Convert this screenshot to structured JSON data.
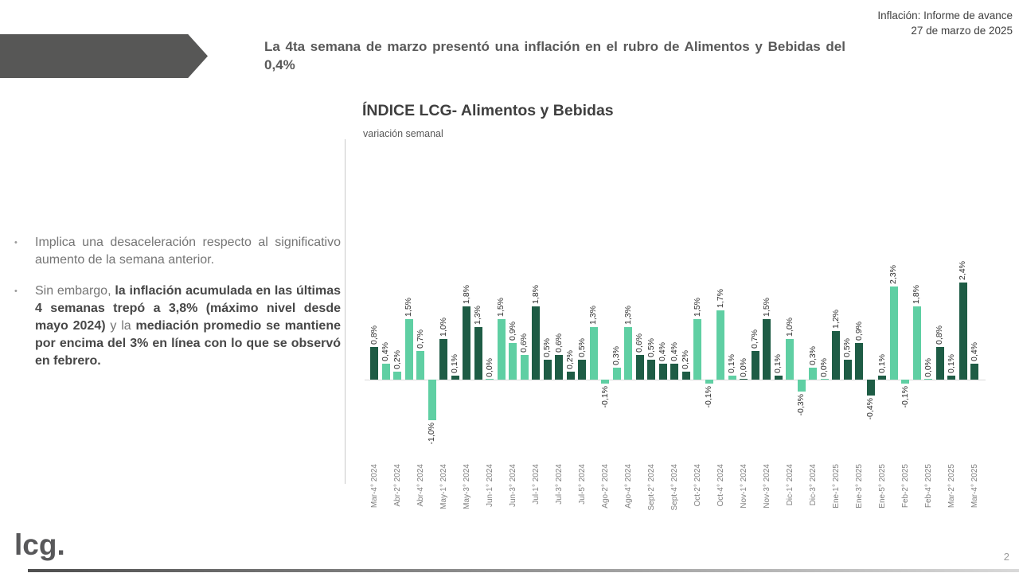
{
  "header": {
    "line1": "Inflación: Informe de avance",
    "line2": "27 de marzo de 2025"
  },
  "headline": {
    "text": "La 4ta semana de marzo presentó una inflación en el rubro de Alimentos y Bebidas del 0,4%"
  },
  "bullets": {
    "marker": "•",
    "b1": "Implica una desaceleración respecto al significativo aumento de la semana anterior.",
    "b2_parts": [
      {
        "text": "Sin embargo, ",
        "bold": false
      },
      {
        "text": "la inflación acumulada en las últimas 4 semanas trepó a 3,8% (máximo nivel desde mayo 2024)",
        "bold": true
      },
      {
        "text": " y la ",
        "bold": false
      },
      {
        "text": "mediación promedio se mantiene por encima del 3% en línea con lo que se observó en febrero.",
        "bold": true
      }
    ]
  },
  "chart_data": {
    "type": "bar",
    "title": "ÍNDICE LCG- Alimentos y Bebidas",
    "subtitle": "variación semanal",
    "ylabel": "variación semanal (%)",
    "ylim": [
      -1.2,
      2.6
    ],
    "grid": false,
    "legend": "none",
    "colors": {
      "dark": "#1E5C45",
      "light": "#5FCFA3"
    },
    "points": [
      {
        "v": 0.8,
        "label": "0,8%",
        "tick": "Mar-4° 2024",
        "shade": "dark"
      },
      {
        "v": 0.4,
        "label": "0,4%",
        "tick": "",
        "shade": "light"
      },
      {
        "v": 0.2,
        "label": "0,2%",
        "tick": "Abr-2° 2024",
        "shade": "light"
      },
      {
        "v": 1.5,
        "label": "1,5%",
        "tick": "",
        "shade": "light"
      },
      {
        "v": 0.7,
        "label": "0,7%",
        "tick": "Abr-4° 2024",
        "shade": "light"
      },
      {
        "v": -1.0,
        "label": "-1,0%",
        "tick": "",
        "shade": "light"
      },
      {
        "v": 1.0,
        "label": "1,0%",
        "tick": "May-1° 2024",
        "shade": "dark"
      },
      {
        "v": 0.1,
        "label": "0,1%",
        "tick": "",
        "shade": "dark"
      },
      {
        "v": 1.8,
        "label": "1,8%",
        "tick": "May-3° 2024",
        "shade": "dark"
      },
      {
        "v": 1.3,
        "label": "1,3%",
        "tick": "",
        "shade": "dark"
      },
      {
        "v": 0.0,
        "label": "0,0%",
        "tick": "Jun-1° 2024",
        "shade": "light"
      },
      {
        "v": 1.5,
        "label": "1,5%",
        "tick": "",
        "shade": "light"
      },
      {
        "v": 0.9,
        "label": "0,9%",
        "tick": "Jun-3° 2024",
        "shade": "light"
      },
      {
        "v": 0.6,
        "label": "0,6%",
        "tick": "",
        "shade": "light"
      },
      {
        "v": 1.8,
        "label": "1,8%",
        "tick": "Jul-1° 2024",
        "shade": "dark"
      },
      {
        "v": 0.5,
        "label": "0,5%",
        "tick": "",
        "shade": "dark"
      },
      {
        "v": 0.6,
        "label": "0,6%",
        "tick": "Jul-3° 2024",
        "shade": "dark"
      },
      {
        "v": 0.2,
        "label": "0,2%",
        "tick": "",
        "shade": "dark"
      },
      {
        "v": 0.5,
        "label": "0,5%",
        "tick": "Jul-5° 2024",
        "shade": "dark"
      },
      {
        "v": 1.3,
        "label": "1,3%",
        "tick": "",
        "shade": "light"
      },
      {
        "v": -0.1,
        "label": "-0,1%",
        "tick": "Ago-2° 2024",
        "shade": "light"
      },
      {
        "v": 0.3,
        "label": "0,3%",
        "tick": "",
        "shade": "light"
      },
      {
        "v": 1.3,
        "label": "1,3%",
        "tick": "Ago-4° 2024",
        "shade": "light"
      },
      {
        "v": 0.6,
        "label": "0,6%",
        "tick": "",
        "shade": "dark"
      },
      {
        "v": 0.5,
        "label": "0,5%",
        "tick": "Sept-2° 2024",
        "shade": "dark"
      },
      {
        "v": 0.4,
        "label": "0,4%",
        "tick": "",
        "shade": "dark"
      },
      {
        "v": 0.4,
        "label": "0,4%",
        "tick": "Sept-4° 2024",
        "shade": "dark"
      },
      {
        "v": 0.2,
        "label": "0,2%",
        "tick": "",
        "shade": "dark"
      },
      {
        "v": 1.5,
        "label": "1,5%",
        "tick": "Oct-2° 2024",
        "shade": "light"
      },
      {
        "v": -0.1,
        "label": "-0,1%",
        "tick": "",
        "shade": "light"
      },
      {
        "v": 1.7,
        "label": "1,7%",
        "tick": "Oct-4° 2024",
        "shade": "light"
      },
      {
        "v": 0.1,
        "label": "0,1%",
        "tick": "",
        "shade": "light"
      },
      {
        "v": 0.0,
        "label": "0,0%",
        "tick": "Nov-1° 2024",
        "shade": "dark"
      },
      {
        "v": 0.7,
        "label": "0,7%",
        "tick": "",
        "shade": "dark"
      },
      {
        "v": 1.5,
        "label": "1,5%",
        "tick": "Nov-3° 2024",
        "shade": "dark"
      },
      {
        "v": 0.1,
        "label": "0,1%",
        "tick": "",
        "shade": "dark"
      },
      {
        "v": 1.0,
        "label": "1,0%",
        "tick": "Dic-1° 2024",
        "shade": "light"
      },
      {
        "v": -0.3,
        "label": "-0,3%",
        "tick": "",
        "shade": "light"
      },
      {
        "v": 0.3,
        "label": "0,3%",
        "tick": "Dic-3° 2024",
        "shade": "light"
      },
      {
        "v": 0.0,
        "label": "0,0%",
        "tick": "",
        "shade": "light"
      },
      {
        "v": 1.2,
        "label": "1,2%",
        "tick": "Ene-1° 2025",
        "shade": "dark"
      },
      {
        "v": 0.5,
        "label": "0,5%",
        "tick": "",
        "shade": "dark"
      },
      {
        "v": 0.9,
        "label": "0,9%",
        "tick": "Ene-3° 2025",
        "shade": "dark"
      },
      {
        "v": -0.4,
        "label": "-0,4%",
        "tick": "",
        "shade": "dark"
      },
      {
        "v": 0.1,
        "label": "0,1%",
        "tick": "Ene-5° 2025",
        "shade": "dark"
      },
      {
        "v": 2.3,
        "label": "2,3%",
        "tick": "",
        "shade": "light"
      },
      {
        "v": -0.1,
        "label": "-0,1%",
        "tick": "Feb-2° 2025",
        "shade": "light"
      },
      {
        "v": 1.8,
        "label": "1,8%",
        "tick": "",
        "shade": "light"
      },
      {
        "v": 0.0,
        "label": "0,0%",
        "tick": "Feb-4° 2025",
        "shade": "light"
      },
      {
        "v": 0.8,
        "label": "0,8%",
        "tick": "",
        "shade": "dark"
      },
      {
        "v": 0.1,
        "label": "0,1%",
        "tick": "Mar-2° 2025",
        "shade": "dark"
      },
      {
        "v": 2.4,
        "label": "2,4%",
        "tick": "",
        "shade": "dark"
      },
      {
        "v": 0.4,
        "label": "0,4%",
        "tick": "Mar-4° 2025",
        "shade": "dark"
      }
    ]
  },
  "footer": {
    "logo": "lcg.",
    "page": "2"
  }
}
